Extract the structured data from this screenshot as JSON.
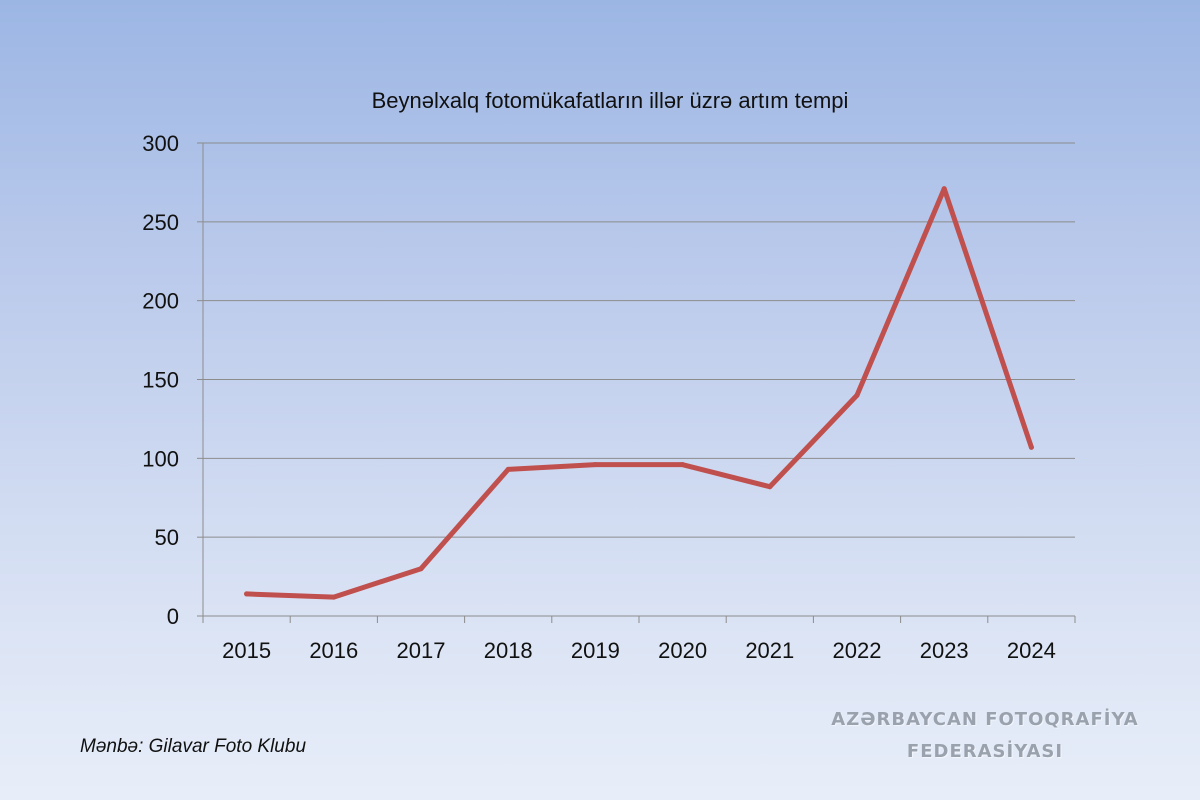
{
  "chart_data": {
    "type": "line",
    "title": "Beynəlxalq fotomükafatların illər üzrə artım tempi",
    "categories": [
      "2015",
      "2016",
      "2017",
      "2018",
      "2019",
      "2020",
      "2021",
      "2022",
      "2023",
      "2024"
    ],
    "series": [
      {
        "values": [
          14,
          12,
          30,
          93,
          96,
          96,
          82,
          140,
          271,
          107
        ],
        "color": "#c0504d"
      }
    ],
    "ylim": [
      0,
      300
    ],
    "yticks": [
      "0",
      "50",
      "100",
      "150",
      "200",
      "250",
      "300"
    ],
    "grid": true,
    "legend": "none"
  },
  "source": "Mənbə: Gilavar Foto Klubu",
  "watermark": {
    "line1": "AZƏRBAYCAN FOTOQRAFİYA",
    "line2": "FEDERASİYASI"
  }
}
